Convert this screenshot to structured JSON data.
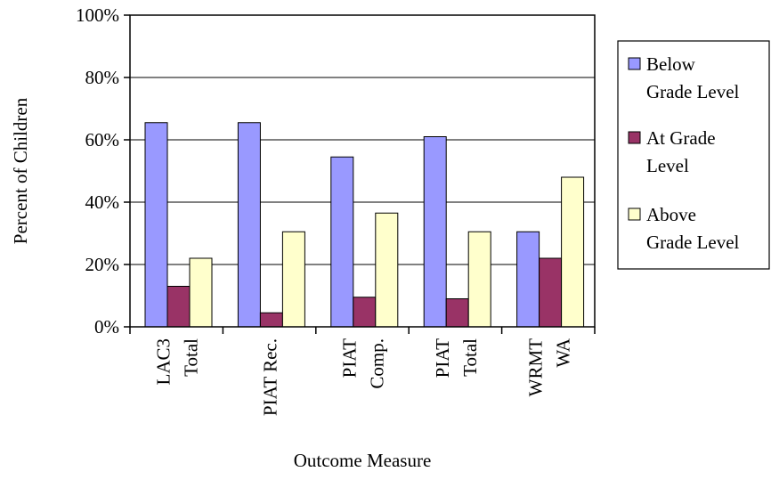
{
  "chart_data": {
    "type": "bar",
    "title": "",
    "xlabel": "Outcome Measure",
    "ylabel": "Percent of Children",
    "ylim": [
      0,
      100
    ],
    "yticks": [
      "0%",
      "20%",
      "40%",
      "60%",
      "80%",
      "100%"
    ],
    "grid": true,
    "legend_position": "right",
    "categories": [
      [
        "LAC3",
        "Total"
      ],
      [
        "PIAT Rec."
      ],
      [
        "PIAT",
        "Comp."
      ],
      [
        "PIAT",
        "Total"
      ],
      [
        "WRMT",
        "WA"
      ]
    ],
    "series": [
      {
        "name": [
          "Below",
          "Grade Level"
        ],
        "color": "#9999ff",
        "values": [
          65.5,
          65.5,
          54.5,
          61,
          30.5
        ]
      },
      {
        "name": [
          "At Grade",
          "Level"
        ],
        "color": "#993366",
        "values": [
          13,
          4.5,
          9.5,
          9,
          22
        ]
      },
      {
        "name": [
          "Above",
          "Grade Level"
        ],
        "color": "#ffffcc",
        "values": [
          22,
          30.5,
          36.5,
          30.5,
          48
        ]
      }
    ]
  }
}
